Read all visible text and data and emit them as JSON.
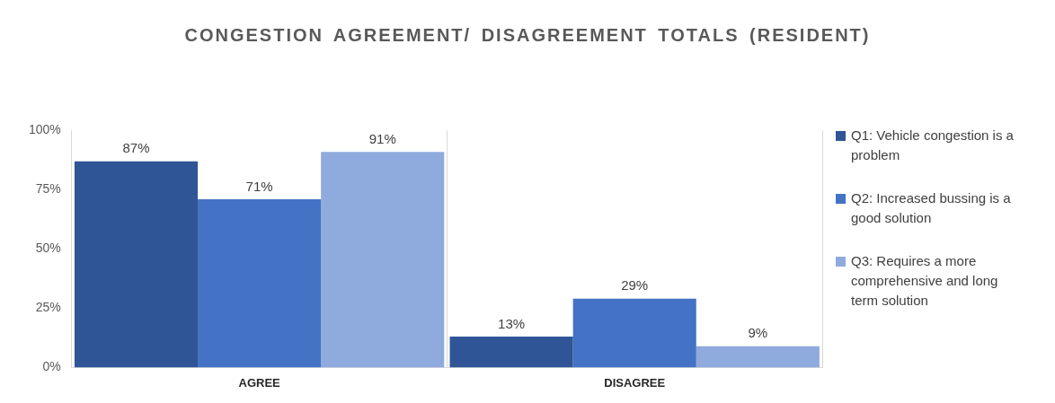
{
  "chart_data": {
    "type": "bar",
    "title": "CONGESTION AGREEMENT/ DISAGREEMENT TOTALS (RESIDENT)",
    "categories": [
      "AGREE",
      "DISAGREE"
    ],
    "series": [
      {
        "name": "Q1: Vehicle congestion is a problem",
        "color": "#2f5597",
        "values": [
          87,
          13
        ],
        "value_labels": [
          "87%",
          "13%"
        ]
      },
      {
        "name": "Q2: Increased bussing is a good solution",
        "color": "#4472c4",
        "values": [
          71,
          29
        ],
        "value_labels": [
          "71%",
          "29%"
        ]
      },
      {
        "name": "Q3: Requires a more comprehensive and long term solution",
        "color": "#8faadc",
        "values": [
          91,
          9
        ],
        "value_labels": [
          "91%",
          "9%"
        ]
      }
    ],
    "ylim": [
      0,
      100
    ],
    "yticks": [
      {
        "value": 0,
        "label": "0%"
      },
      {
        "value": 25,
        "label": "25%"
      },
      {
        "value": 50,
        "label": "50%"
      },
      {
        "value": 75,
        "label": "75%"
      },
      {
        "value": 100,
        "label": "100%"
      }
    ],
    "grid": "x",
    "legend": "right"
  }
}
